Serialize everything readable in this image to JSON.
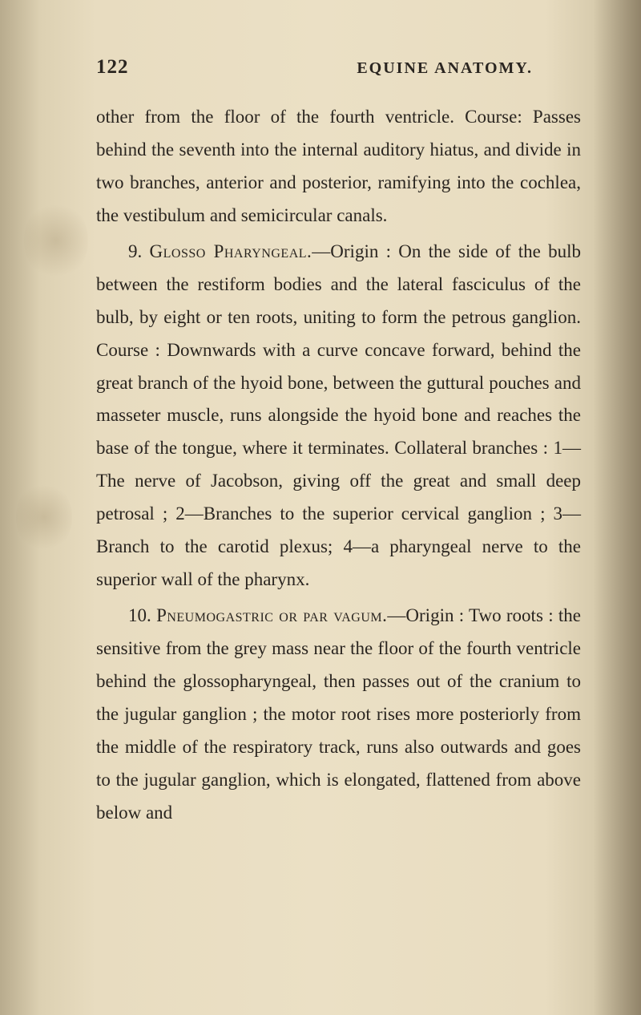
{
  "header": {
    "page_number": "122",
    "running_title": "EQUINE ANATOMY."
  },
  "paragraphs": {
    "p1": "other from the floor of the fourth ventricle. Course: Passes behind the seventh into the internal auditory hiatus, and divide in two branches, anterior and posterior, ramifying into the cochlea, the vestibu­lum and semicircular canals.",
    "p2_num": "9. ",
    "p2_caps": "Glosso Pharyngeal.",
    "p2_rest": "—Origin : On the side of the bulb between the restiform bodies and the lateral fasciculus of the bulb, by eight or ten roots, uniting to form the petrous ganglion. Course : Downwards with a curve concave forward, behind the great branch of the hyoid bone, between the guttural pouches and masseter muscle, runs along­side the hyoid bone and reaches the base of the tongue, where it terminates. Collateral branches : 1—The nerve of Jacobson, giving off the great and small deep petrosal ; 2—Branches to the superior cervical ganglion ; 3—Branch to the carotid plexus; 4—a pharyngeal nerve to the superior wall of the pharynx.",
    "p3_num": "10. ",
    "p3_caps": "Pneumogastric or par vagum.",
    "p3_rest": "—Origin : Two roots : the sensitive from the grey mass near the floor of the fourth ventricle behind the glosso­pharyngeal, then passes out of the cranium to the jugular ganglion ; the motor root rises more pos­teriorly from the middle of the respiratory track, runs also outwards and goes to the jugular ganglion, which is elongated, flattened from above below and"
  },
  "colors": {
    "text": "#2a2520",
    "bg_center": "#ebe0c5",
    "bg_edge": "#d4c8a8"
  },
  "typography": {
    "body_fontsize": 23,
    "header_fontsize": 25,
    "line_height": 1.78
  }
}
